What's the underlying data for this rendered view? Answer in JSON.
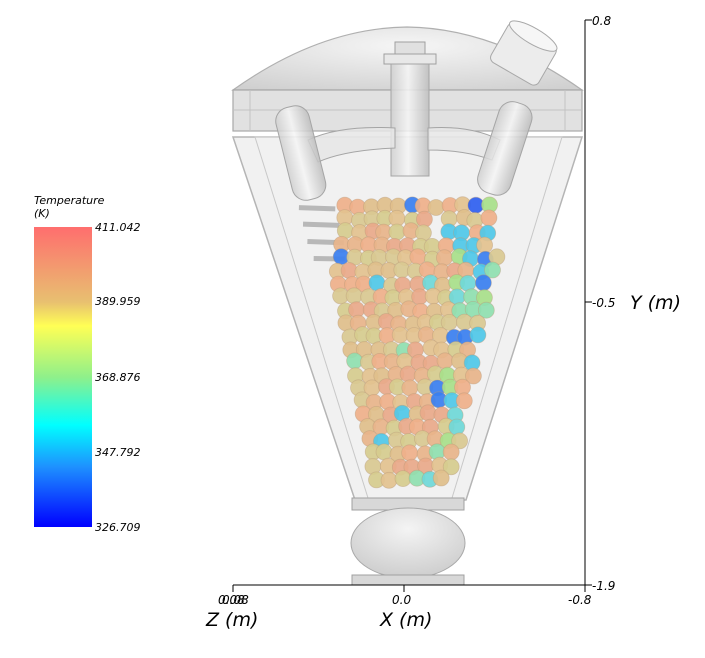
{
  "colorbar": {
    "title": "Temperature",
    "unit": "(K)",
    "ticks": [
      "411.042",
      "389.959",
      "368.876",
      "347.792",
      "326.709"
    ],
    "min": 326.709,
    "max": 411.042,
    "colors": [
      "#ff6e6e",
      "#ffff55",
      "#00ffff",
      "#0000ff"
    ]
  },
  "chart_data": {
    "type": "scatter",
    "x_axis": {
      "label": "X (m)",
      "ticks": [
        "0.0",
        "-0.8"
      ]
    },
    "z_axis": {
      "label": "Z (m)",
      "ticks": [
        "0.08",
        "0.08"
      ]
    },
    "y_axis": {
      "label": "Y (m)",
      "ticks": [
        "0.8",
        "-0.5",
        "-1.9"
      ],
      "range": [
        -1.9,
        0.8
      ]
    },
    "color_variable": "Temperature (K)",
    "color_range": [
      326.709,
      411.042
    ]
  }
}
